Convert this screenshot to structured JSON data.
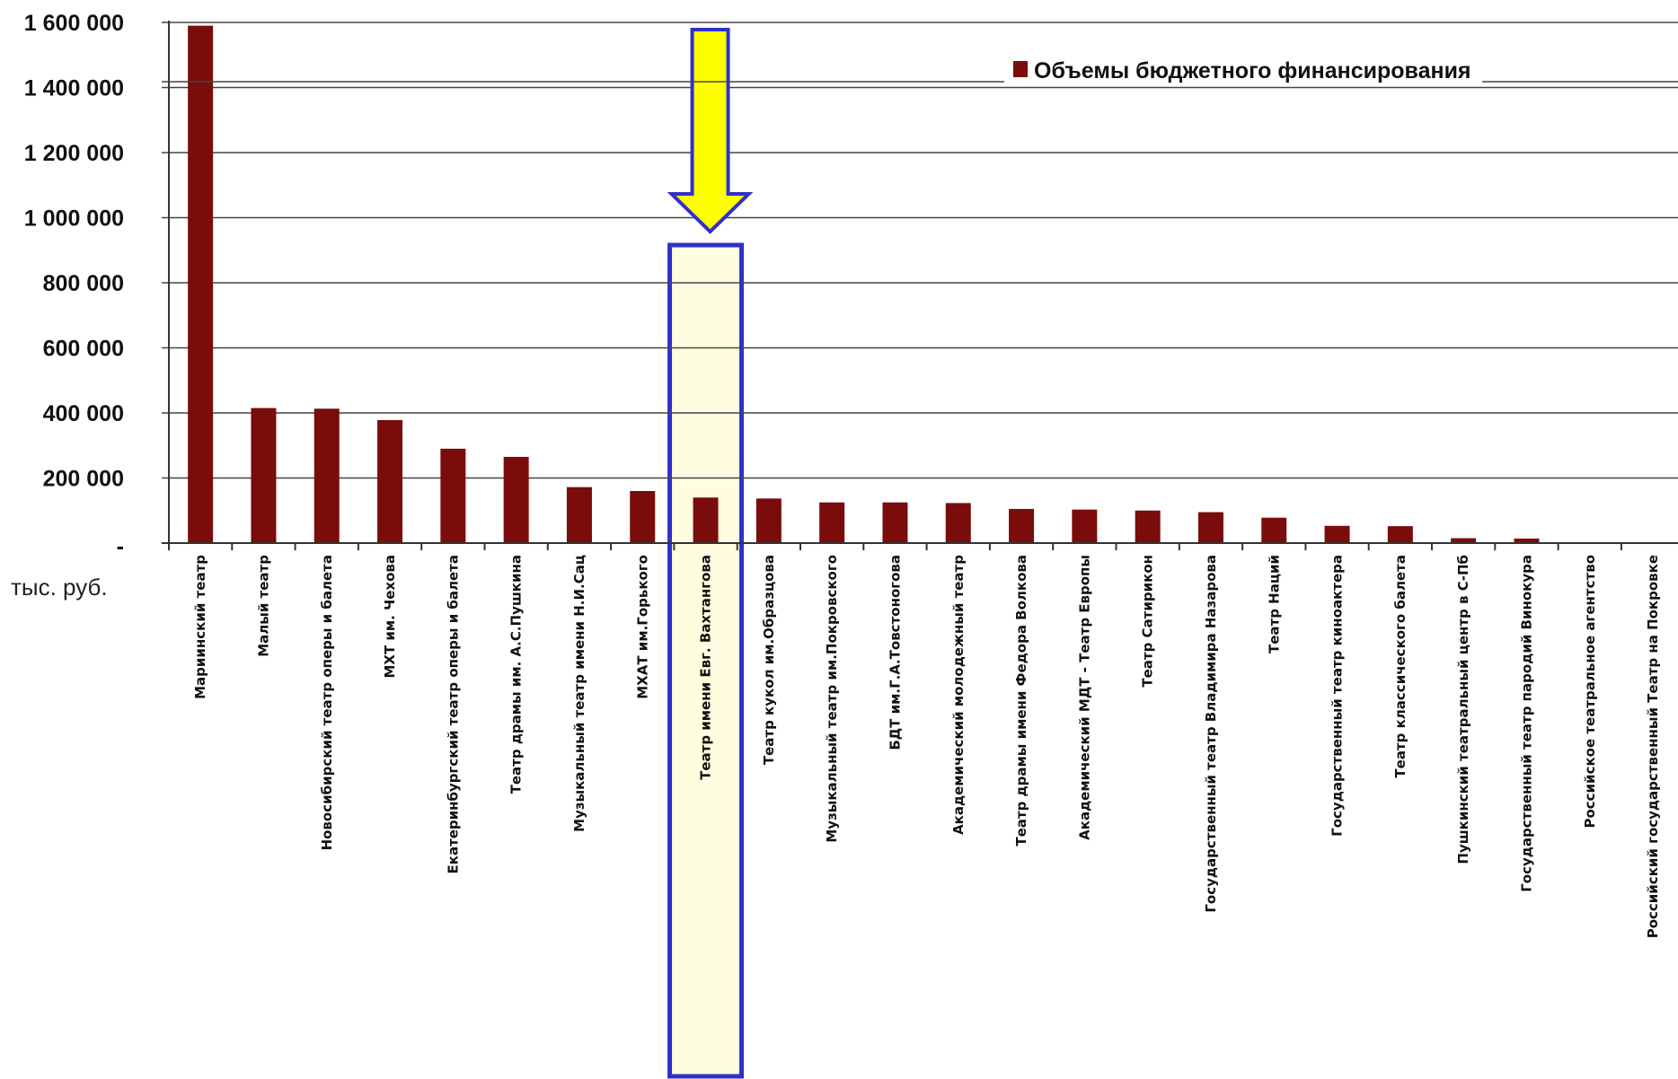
{
  "chart_data": {
    "type": "bar",
    "unit_label": "тыс. руб.",
    "ylim": [
      0,
      1600000
    ],
    "yticks": [
      {
        "value": 0,
        "label": "-"
      },
      {
        "value": 200000,
        "label": "200 000"
      },
      {
        "value": 400000,
        "label": "400 000"
      },
      {
        "value": 600000,
        "label": "600 000"
      },
      {
        "value": 800000,
        "label": "800 000"
      },
      {
        "value": 1000000,
        "label": "1 000 000"
      },
      {
        "value": 1200000,
        "label": "1 200 000"
      },
      {
        "value": 1400000,
        "label": "1 400 000"
      },
      {
        "value": 1600000,
        "label": "1 600 000"
      }
    ],
    "grid": true,
    "legend_position": "top-right",
    "series": [
      {
        "name": "Объемы бюджетного финансирования",
        "color": "#7b0c0c"
      }
    ],
    "categories": [
      "Мариинский театр",
      "Малый театр",
      "Новосибирский театр оперы и балета",
      "МХТ им. Чехова",
      "Екатеринбургский театр оперы и балета",
      "Театр драмы им. А.С.Пушкина",
      "Музыкальный театр имени Н.И.Сац",
      "МХАТ им.Горького",
      "Театр имени Евг. Вахтангова",
      "Театр кукол им.Образцова",
      "Музыкальный театр им.Покровского",
      "БДТ им.Г.А.Товстоногова",
      "Академический молодежный театр",
      "Театр драмы имени Федора Волкова",
      "Академический МДТ - Театр Европы",
      "Театр Сатирикон",
      "Государственный театр Владимира Назарова",
      "Театр Наций",
      "Государственный театр киноактера",
      "Театр классического балета",
      "Пушкинский театральный центр в С-Пб",
      "Государственный театр пародий Винокура",
      "Российское театральное агентство",
      "Российский государственный Театр на Покровке"
    ],
    "values": [
      1590000,
      415000,
      413000,
      378000,
      290000,
      265000,
      172000,
      160000,
      140000,
      137000,
      125000,
      125000,
      123000,
      105000,
      103000,
      100000,
      95000,
      78000,
      53000,
      52000,
      15000,
      14000,
      0,
      0
    ],
    "highlight": {
      "category_index": 8,
      "box_color": "#3030cc",
      "fill_color": "#fffde0",
      "arrow_color": "#ffff00"
    }
  }
}
